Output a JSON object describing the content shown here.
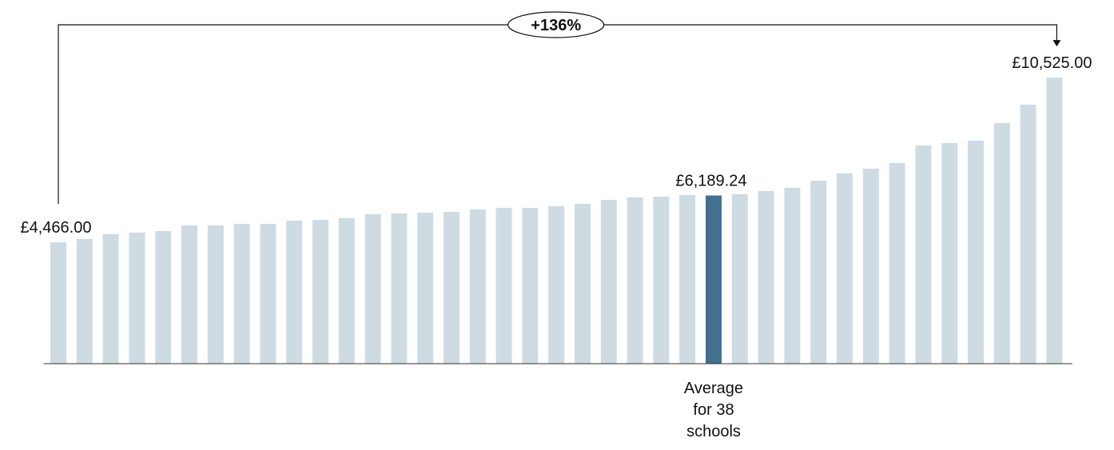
{
  "chart_data": {
    "type": "bar",
    "annotation": "+136%",
    "categories": [
      null,
      null,
      null,
      null,
      null,
      null,
      null,
      null,
      null,
      null,
      null,
      null,
      null,
      null,
      null,
      null,
      null,
      null,
      null,
      null,
      null,
      null,
      null,
      null,
      null,
      "Average for 38 schools",
      null,
      null,
      null,
      null,
      null,
      null,
      null,
      null,
      null,
      null,
      null,
      null,
      null
    ],
    "values": [
      4466,
      4588,
      4765,
      4824,
      4882,
      5088,
      5088,
      5147,
      5147,
      5265,
      5294,
      5353,
      5500,
      5529,
      5559,
      5588,
      5676,
      5735,
      5735,
      5794,
      5882,
      6029,
      6118,
      6147,
      6206,
      6189.24,
      6235,
      6353,
      6471,
      6735,
      7000,
      7176,
      7382,
      8029,
      8118,
      8206,
      8853,
      9529,
      10525
    ],
    "value_labels": [
      "£4,466.00",
      null,
      null,
      null,
      null,
      null,
      null,
      null,
      null,
      null,
      null,
      null,
      null,
      null,
      null,
      null,
      null,
      null,
      null,
      null,
      null,
      null,
      null,
      null,
      null,
      "£6,189.24",
      null,
      null,
      null,
      null,
      null,
      null,
      null,
      null,
      null,
      null,
      null,
      null,
      "£10,525.00"
    ],
    "colors": [
      "#cfdbe3",
      "#cfdbe3",
      "#cfdbe3",
      "#cfdbe3",
      "#cfdbe3",
      "#cfdbe3",
      "#cfdbe3",
      "#cfdbe3",
      "#cfdbe3",
      "#cfdbe3",
      "#cfdbe3",
      "#cfdbe3",
      "#cfdbe3",
      "#cfdbe3",
      "#cfdbe3",
      "#cfdbe3",
      "#cfdbe3",
      "#cfdbe3",
      "#cfdbe3",
      "#cfdbe3",
      "#cfdbe3",
      "#cfdbe3",
      "#cfdbe3",
      "#cfdbe3",
      "#cfdbe3",
      "#43708f",
      "#cfdbe3",
      "#cfdbe3",
      "#cfdbe3",
      "#cfdbe3",
      "#cfdbe3",
      "#cfdbe3",
      "#cfdbe3",
      "#cfdbe3",
      "#cfdbe3",
      "#cfdbe3",
      "#cfdbe3",
      "#cfdbe3",
      "#cfdbe3"
    ],
    "ylim": [
      0,
      12000
    ]
  }
}
